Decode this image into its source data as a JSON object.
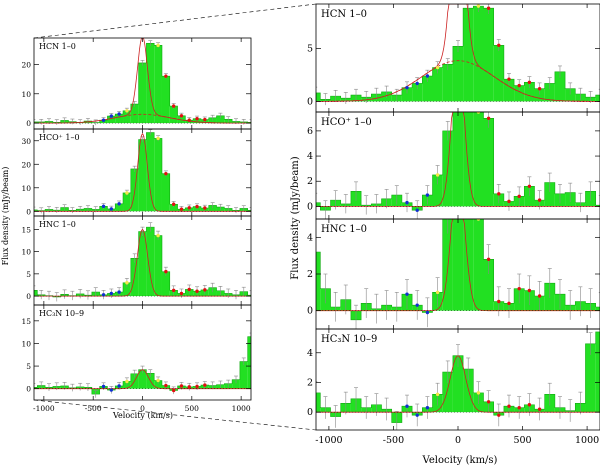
{
  "colors": {
    "fill": "#22e022",
    "fill_stroke": "#11aa11",
    "fit": "#cc2222",
    "broad": "#cc2222",
    "red": "#e01010",
    "blue": "#1030d0",
    "yellow": "#f5e84a",
    "err": "#888888",
    "axis": "#000000"
  },
  "chart_data": {
    "type": "bar",
    "x_label_left": "Velocity (km/s)",
    "x_label_right": "Velocity (km/s)",
    "y_label_left": "Flux density (mJy/beam)",
    "y_label_right": "Flux density (mJy/beam)",
    "xlim": [
      -1100,
      1100
    ],
    "x_ticks": [
      -1000,
      -500,
      0,
      500,
      1000
    ],
    "x_tick_labels": [
      "-1000",
      "-500",
      "0",
      "500",
      "1000"
    ],
    "bin_width": 79,
    "panels": [
      {
        "id": "hcn",
        "label": "HCN 1–0",
        "left": {
          "ylim": [
            -2,
            29
          ],
          "ticks": [
            0,
            10,
            20
          ],
          "tick_labels": [
            "0",
            "10",
            "20"
          ]
        },
        "right": {
          "ylim": [
            -1.0,
            9.2
          ],
          "ticks": [
            0,
            5
          ],
          "tick_labels": [
            "0",
            "5"
          ],
          "label": "HCN 1–0"
        },
        "values": [
          0.3,
          0.8,
          0.2,
          0.5,
          0.3,
          0.6,
          0.4,
          0.7,
          0.9,
          0.6,
          1.3,
          1.7,
          2.4,
          3.2,
          3.5,
          5.2,
          8.8,
          9.0,
          8.8,
          5.3,
          2.1,
          1.5,
          1.8,
          1.2,
          1.7,
          2.8,
          1.2,
          0.7,
          0.4,
          0.6,
          0.3
        ],
        "left_values": [
          0.8,
          0.4,
          0.4,
          0.6,
          0.3,
          0.9,
          0.5,
          0.3,
          0.7,
          0.2,
          1.0,
          2.4,
          3.1,
          4.2,
          6.5,
          20.5,
          27.2,
          26.5,
          16.0,
          5.8,
          2.5,
          1.0,
          1.5,
          1.2,
          1.8,
          2.5,
          1.3,
          0.6,
          0.4,
          0.3,
          0.5
        ],
        "fit_amp": 17.0,
        "fit_sigma": 50,
        "broad_amp": 3.85,
        "broad_sigma": 280,
        "left_fit_amp": 26.5,
        "left_broad_amp": 3.0,
        "errors": 0.55,
        "left_errors": 0.9
      },
      {
        "id": "hcop",
        "label": "HCO⁺ 1–0",
        "left": {
          "ylim": [
            -2,
            35
          ],
          "ticks": [
            0,
            10,
            20,
            30
          ],
          "tick_labels": [
            "0",
            "10",
            "20",
            "30"
          ]
        },
        "right": {
          "ylim": [
            -1.0,
            7.5
          ],
          "ticks": [
            0,
            2,
            4,
            6
          ],
          "tick_labels": [
            "0",
            "2",
            "4",
            "6"
          ],
          "label": "HCO⁺ 1–0"
        },
        "values": [
          1.6,
          0.3,
          -0.3,
          0.5,
          0.2,
          1.2,
          0.1,
          0.2,
          0.6,
          0.9,
          0.3,
          -0.3,
          0.9,
          2.5,
          6.0,
          9.5,
          9.6,
          9.3,
          7.0,
          1.0,
          0.4,
          0.8,
          1.6,
          0.5,
          1.9,
          1.0,
          1.1,
          0.3,
          1.2,
          0.1,
          0.3
        ],
        "left_values": [
          1.5,
          0.6,
          0.3,
          0.8,
          0.5,
          1.6,
          0.4,
          0.9,
          1.2,
          0.8,
          2.1,
          1.0,
          3.2,
          7.8,
          18.0,
          30.5,
          33.5,
          31.0,
          16.0,
          3.0,
          0.9,
          1.5,
          2.0,
          1.4,
          2.5,
          1.8,
          1.2,
          0.4,
          1.2,
          0.4,
          0.6
        ],
        "fit_amp": 12.0,
        "fit_sigma": 48,
        "broad_amp": 0,
        "broad_sigma": 280,
        "left_fit_amp": 33.0,
        "left_broad_amp": 0,
        "errors": 0.75,
        "left_errors": 1.2
      },
      {
        "id": "hnc",
        "label": "HNC 1–0",
        "left": {
          "ylim": [
            -2,
            18
          ],
          "ticks": [
            0,
            5,
            10,
            15
          ],
          "tick_labels": [
            "0",
            "5",
            "10",
            "15"
          ]
        },
        "right": {
          "ylim": [
            -1.0,
            5.0
          ],
          "ticks": [
            0,
            2,
            4
          ],
          "tick_labels": [
            "0",
            "2",
            "4"
          ],
          "label": "HNC 1–0"
        },
        "values": [
          3.9,
          3.2,
          1.2,
          0.2,
          0.6,
          -0.5,
          0.4,
          0.1,
          0.3,
          0.2,
          0.9,
          0.3,
          -0.1,
          1.0,
          5.0,
          6.2,
          6.3,
          6.0,
          2.8,
          0.5,
          0.4,
          1.2,
          1.1,
          0.8,
          1.5,
          0.9,
          0.3,
          0.5,
          0.4,
          0.2,
          0.4
        ],
        "left_values": [
          3.4,
          1.3,
          0.3,
          0.1,
          -0.2,
          0.4,
          0.1,
          0.5,
          0.2,
          0.9,
          0.3,
          0.6,
          0.9,
          3.0,
          8.5,
          14.5,
          15.5,
          13.6,
          5.5,
          1.3,
          0.6,
          1.5,
          1.1,
          1.4,
          1.9,
          1.2,
          0.6,
          0.3,
          1.0,
          0.2,
          0.4
        ],
        "fit_amp": 7.5,
        "fit_sigma": 52,
        "broad_amp": 0,
        "broad_sigma": 280,
        "left_fit_amp": 15.0,
        "left_broad_amp": 0,
        "errors": 0.8,
        "left_errors": 1.0
      },
      {
        "id": "hc3n",
        "label": "HC₃N 10–9",
        "left": {
          "ylim": [
            -2.5,
            18.5
          ],
          "ticks": [
            0,
            5,
            10,
            15
          ],
          "tick_labels": [
            "0",
            "5",
            "10",
            "15"
          ]
        },
        "right": {
          "ylim": [
            -1.2,
            5.6
          ],
          "ticks": [
            0,
            2,
            4
          ],
          "tick_labels": [
            "0",
            "2",
            "4"
          ],
          "label": "HC₃N 10–9"
        },
        "values": [
          0.4,
          1.3,
          0.3,
          -0.3,
          0.6,
          0.9,
          0.3,
          0.5,
          0.2,
          -0.7,
          0.4,
          -0.2,
          0.3,
          1.2,
          2.7,
          3.8,
          2.9,
          1.3,
          0.7,
          -0.2,
          0.4,
          0.3,
          0.5,
          0.2,
          1.2,
          0.3,
          0.1,
          0.6,
          4.6,
          5.4,
          5.6
        ],
        "left_values": [
          1.3,
          0.3,
          0.7,
          0.3,
          0.5,
          0.6,
          0.2,
          0.4,
          0.3,
          -1.2,
          0.5,
          -0.3,
          0.6,
          1.6,
          3.3,
          4.2,
          3.4,
          1.8,
          0.7,
          -0.4,
          0.6,
          0.4,
          0.5,
          0.8,
          0.7,
          0.9,
          1.1,
          2.0,
          6.0,
          11.5,
          15.8
        ],
        "fit_amp": 3.8,
        "fit_sigma": 60,
        "broad_amp": 0,
        "broad_sigma": 280,
        "left_fit_amp": 4.2,
        "left_broad_amp": 0,
        "errors": 0.75,
        "left_errors": 0.8
      }
    ]
  }
}
